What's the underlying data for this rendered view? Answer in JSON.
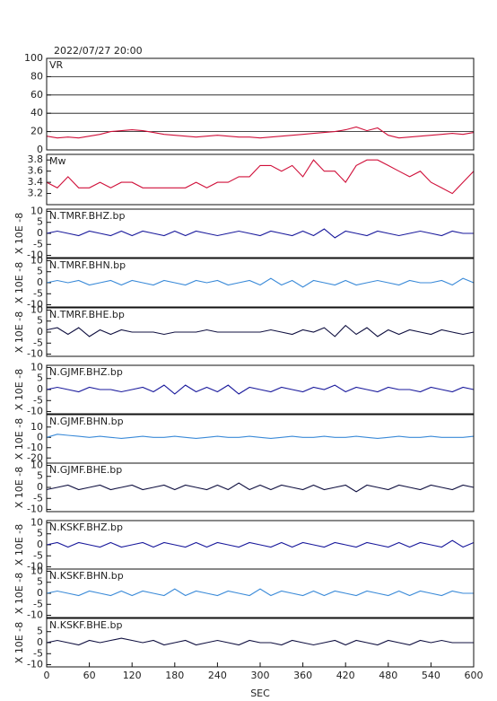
{
  "chart_data": [
    {
      "type": "line",
      "title": "2022/07/27 20:00",
      "label": "VR",
      "color": "#d0103a",
      "grid": true,
      "xlim": [
        0,
        600
      ],
      "ylim": [
        0,
        100
      ],
      "yticks": [
        0,
        20,
        40,
        60,
        80,
        100
      ],
      "x": [
        0,
        15,
        30,
        45,
        60,
        75,
        90,
        105,
        120,
        135,
        150,
        165,
        180,
        195,
        210,
        225,
        240,
        255,
        270,
        285,
        300,
        315,
        330,
        345,
        360,
        375,
        390,
        405,
        420,
        435,
        450,
        465,
        480,
        495,
        510,
        525,
        540,
        555,
        570,
        585,
        600
      ],
      "values": [
        15,
        13,
        14,
        13,
        15,
        17,
        20,
        21,
        22,
        21,
        19,
        17,
        16,
        15,
        14,
        15,
        16,
        15,
        14,
        14,
        13,
        14,
        15,
        16,
        17,
        18,
        19,
        20,
        22,
        25,
        21,
        24,
        16,
        13,
        14,
        15,
        16,
        17,
        18,
        17,
        19
      ]
    },
    {
      "type": "line",
      "label": "Mw",
      "color": "#d0103a",
      "grid": false,
      "xlim": [
        0,
        600
      ],
      "ylim": [
        3.0,
        3.9
      ],
      "yticks": [
        3.2,
        3.4,
        3.6,
        3.8
      ],
      "x": [
        0,
        15,
        30,
        45,
        60,
        75,
        90,
        105,
        120,
        135,
        150,
        165,
        180,
        195,
        210,
        225,
        240,
        255,
        270,
        285,
        300,
        315,
        330,
        345,
        360,
        375,
        390,
        405,
        420,
        435,
        450,
        465,
        480,
        495,
        510,
        525,
        540,
        555,
        570,
        585,
        600
      ],
      "values": [
        3.4,
        3.3,
        3.5,
        3.3,
        3.3,
        3.4,
        3.3,
        3.4,
        3.4,
        3.3,
        3.3,
        3.3,
        3.3,
        3.3,
        3.4,
        3.3,
        3.4,
        3.4,
        3.5,
        3.5,
        3.7,
        3.7,
        3.6,
        3.7,
        3.5,
        3.8,
        3.6,
        3.6,
        3.4,
        3.7,
        3.8,
        3.8,
        3.7,
        3.6,
        3.5,
        3.6,
        3.4,
        3.3,
        3.2,
        3.4,
        3.6
      ]
    },
    {
      "type": "line",
      "label": "N.TMRF.BHZ.bp",
      "ylabel": "X 10E -8",
      "color": "#1a1a9c",
      "grid": false,
      "xlim": [
        0,
        600
      ],
      "ylim": [
        -11,
        11
      ],
      "yticks": [
        -10,
        -5,
        0,
        5,
        10
      ],
      "x": [
        0,
        15,
        30,
        45,
        60,
        75,
        90,
        105,
        120,
        135,
        150,
        165,
        180,
        195,
        210,
        225,
        240,
        255,
        270,
        285,
        300,
        315,
        330,
        345,
        360,
        375,
        390,
        405,
        420,
        435,
        450,
        465,
        480,
        495,
        510,
        525,
        540,
        555,
        570,
        585,
        600
      ],
      "values": [
        0,
        1,
        0,
        -1,
        1,
        0,
        -1,
        1,
        -1,
        1,
        0,
        -1,
        1,
        -1,
        1,
        0,
        -1,
        0,
        1,
        0,
        -1,
        1,
        0,
        -1,
        1,
        -1,
        2,
        -2,
        1,
        0,
        -1,
        1,
        0,
        -1,
        0,
        1,
        0,
        -1,
        1,
        0,
        0
      ]
    },
    {
      "type": "line",
      "label": "N.TMRF.BHN.bp",
      "ylabel": "X 10E -8",
      "color": "#3a8ad8",
      "grid": false,
      "xlim": [
        0,
        600
      ],
      "ylim": [
        -11,
        11
      ],
      "yticks": [
        -10,
        -5,
        0,
        5,
        10
      ],
      "x": [
        0,
        15,
        30,
        45,
        60,
        75,
        90,
        105,
        120,
        135,
        150,
        165,
        180,
        195,
        210,
        225,
        240,
        255,
        270,
        285,
        300,
        315,
        330,
        345,
        360,
        375,
        390,
        405,
        420,
        435,
        450,
        465,
        480,
        495,
        510,
        525,
        540,
        555,
        570,
        585,
        600
      ],
      "values": [
        0,
        1,
        0,
        1,
        -1,
        0,
        1,
        -1,
        1,
        0,
        -1,
        1,
        0,
        -1,
        1,
        0,
        1,
        -1,
        0,
        1,
        -1,
        2,
        -1,
        1,
        -2,
        1,
        0,
        -1,
        1,
        -1,
        0,
        1,
        0,
        -1,
        1,
        0,
        0,
        1,
        -1,
        2,
        0
      ]
    },
    {
      "type": "line",
      "label": "N.TMRF.BHE.bp",
      "ylabel": "X 10E -8",
      "color": "#101040",
      "grid": false,
      "xlim": [
        0,
        600
      ],
      "ylim": [
        -11,
        11
      ],
      "yticks": [
        -10,
        -5,
        0,
        5,
        10
      ],
      "x": [
        0,
        15,
        30,
        45,
        60,
        75,
        90,
        105,
        120,
        135,
        150,
        165,
        180,
        195,
        210,
        225,
        240,
        255,
        270,
        285,
        300,
        315,
        330,
        345,
        360,
        375,
        390,
        405,
        420,
        435,
        450,
        465,
        480,
        495,
        510,
        525,
        540,
        555,
        570,
        585,
        600
      ],
      "values": [
        1,
        2,
        -1,
        2,
        -2,
        1,
        -1,
        1,
        0,
        0,
        0,
        -1,
        0,
        0,
        0,
        1,
        0,
        0,
        0,
        0,
        0,
        1,
        0,
        -1,
        1,
        0,
        2,
        -2,
        3,
        -1,
        2,
        -2,
        1,
        -1,
        1,
        0,
        -1,
        1,
        0,
        -1,
        0
      ]
    },
    {
      "type": "line",
      "label": "N.GJMF.BHZ.bp",
      "ylabel": "X 10E -8",
      "color": "#1a1a9c",
      "grid": false,
      "xlim": [
        0,
        600
      ],
      "ylim": [
        -11,
        11
      ],
      "yticks": [
        -10,
        -5,
        0,
        5,
        10
      ],
      "x": [
        0,
        15,
        30,
        45,
        60,
        75,
        90,
        105,
        120,
        135,
        150,
        165,
        180,
        195,
        210,
        225,
        240,
        255,
        270,
        285,
        300,
        315,
        330,
        345,
        360,
        375,
        390,
        405,
        420,
        435,
        450,
        465,
        480,
        495,
        510,
        525,
        540,
        555,
        570,
        585,
        600
      ],
      "values": [
        0,
        1,
        0,
        -1,
        1,
        0,
        0,
        -1,
        0,
        1,
        -1,
        2,
        -2,
        2,
        -1,
        1,
        -1,
        2,
        -2,
        1,
        0,
        -1,
        1,
        0,
        -1,
        1,
        0,
        2,
        -1,
        1,
        0,
        -1,
        1,
        0,
        0,
        -1,
        1,
        0,
        -1,
        1,
        0
      ]
    },
    {
      "type": "line",
      "label": "N.GJMF.BHN.bp",
      "ylabel": "X 10E -8",
      "color": "#3a8ad8",
      "grid": false,
      "xlim": [
        0,
        600
      ],
      "ylim": [
        -25,
        22
      ],
      "yticks": [
        -20,
        -10,
        0,
        10
      ],
      "x": [
        0,
        15,
        30,
        45,
        60,
        75,
        90,
        105,
        120,
        135,
        150,
        165,
        180,
        195,
        210,
        225,
        240,
        255,
        270,
        285,
        300,
        315,
        330,
        345,
        360,
        375,
        390,
        405,
        420,
        435,
        450,
        465,
        480,
        495,
        510,
        525,
        540,
        555,
        570,
        585,
        600
      ],
      "values": [
        0,
        3,
        2,
        1,
        0,
        1,
        0,
        -1,
        0,
        1,
        0,
        0,
        1,
        0,
        -1,
        0,
        1,
        0,
        0,
        1,
        0,
        -1,
        0,
        1,
        0,
        0,
        1,
        0,
        0,
        1,
        0,
        -1,
        0,
        1,
        0,
        0,
        1,
        0,
        0,
        0,
        1
      ]
    },
    {
      "type": "line",
      "label": "N.GJMF.BHE.bp",
      "ylabel": "X 10E -8",
      "color": "#101040",
      "grid": false,
      "xlim": [
        0,
        600
      ],
      "ylim": [
        -11,
        11
      ],
      "yticks": [
        -10,
        -5,
        0,
        5,
        10
      ],
      "x": [
        0,
        15,
        30,
        45,
        60,
        75,
        90,
        105,
        120,
        135,
        150,
        165,
        180,
        195,
        210,
        225,
        240,
        255,
        270,
        285,
        300,
        315,
        330,
        345,
        360,
        375,
        390,
        405,
        420,
        435,
        450,
        465,
        480,
        495,
        510,
        525,
        540,
        555,
        570,
        585,
        600
      ],
      "values": [
        -1,
        0,
        1,
        -1,
        0,
        1,
        -1,
        0,
        1,
        -1,
        0,
        1,
        -1,
        1,
        0,
        -1,
        1,
        -1,
        2,
        -1,
        1,
        -1,
        1,
        0,
        -1,
        1,
        -1,
        0,
        1,
        -2,
        1,
        0,
        -1,
        1,
        0,
        -1,
        1,
        0,
        -1,
        1,
        0
      ]
    },
    {
      "type": "line",
      "label": "N.KSKF.BHZ.bp",
      "ylabel": "X 10E -8",
      "color": "#1a1a9c",
      "grid": false,
      "xlim": [
        0,
        600
      ],
      "ylim": [
        -11,
        11
      ],
      "yticks": [
        -10,
        -5,
        0,
        5,
        10
      ],
      "x": [
        0,
        15,
        30,
        45,
        60,
        75,
        90,
        105,
        120,
        135,
        150,
        165,
        180,
        195,
        210,
        225,
        240,
        255,
        270,
        285,
        300,
        315,
        330,
        345,
        360,
        375,
        390,
        405,
        420,
        435,
        450,
        465,
        480,
        495,
        510,
        525,
        540,
        555,
        570,
        585,
        600
      ],
      "values": [
        0,
        1,
        -1,
        1,
        0,
        -1,
        1,
        -1,
        0,
        1,
        -1,
        1,
        0,
        -1,
        1,
        -1,
        1,
        0,
        -1,
        1,
        0,
        -1,
        1,
        -1,
        1,
        0,
        -1,
        1,
        0,
        -1,
        1,
        0,
        -1,
        1,
        -1,
        1,
        0,
        -1,
        2,
        -1,
        1
      ]
    },
    {
      "type": "line",
      "label": "N.KSKF.BHN.bp",
      "ylabel": "X 10E -8",
      "color": "#3a8ad8",
      "grid": false,
      "xlim": [
        0,
        600
      ],
      "ylim": [
        -11,
        11
      ],
      "yticks": [
        -10,
        -5,
        0,
        5,
        10
      ],
      "x": [
        0,
        15,
        30,
        45,
        60,
        75,
        90,
        105,
        120,
        135,
        150,
        165,
        180,
        195,
        210,
        225,
        240,
        255,
        270,
        285,
        300,
        315,
        330,
        345,
        360,
        375,
        390,
        405,
        420,
        435,
        450,
        465,
        480,
        495,
        510,
        525,
        540,
        555,
        570,
        585,
        600
      ],
      "values": [
        0,
        1,
        0,
        -1,
        1,
        0,
        -1,
        1,
        -1,
        1,
        0,
        -1,
        2,
        -1,
        1,
        0,
        -1,
        1,
        0,
        -1,
        2,
        -1,
        1,
        0,
        -1,
        1,
        -1,
        1,
        0,
        -1,
        1,
        0,
        -1,
        1,
        -1,
        1,
        0,
        -1,
        1,
        0,
        0
      ]
    },
    {
      "type": "line",
      "label": "N.KSKF.BHE.bp",
      "ylabel": "X 10E -8",
      "xlabel": "SEC",
      "color": "#101040",
      "grid": false,
      "xlim": [
        0,
        600
      ],
      "ylim": [
        -11,
        11
      ],
      "yticks": [
        -10,
        -5,
        0,
        5
      ],
      "xticks": [
        0,
        60,
        120,
        180,
        240,
        300,
        360,
        420,
        480,
        540,
        600
      ],
      "x": [
        0,
        15,
        30,
        45,
        60,
        75,
        90,
        105,
        120,
        135,
        150,
        165,
        180,
        195,
        210,
        225,
        240,
        255,
        270,
        285,
        300,
        315,
        330,
        345,
        360,
        375,
        390,
        405,
        420,
        435,
        450,
        465,
        480,
        495,
        510,
        525,
        540,
        555,
        570,
        585,
        600
      ],
      "values": [
        0,
        1,
        0,
        -1,
        1,
        0,
        1,
        2,
        1,
        0,
        1,
        -1,
        0,
        1,
        -1,
        0,
        1,
        0,
        -1,
        1,
        0,
        0,
        -1,
        1,
        0,
        -1,
        0,
        1,
        -1,
        1,
        0,
        -1,
        1,
        0,
        -1,
        1,
        0,
        1,
        0,
        0,
        0
      ]
    }
  ]
}
